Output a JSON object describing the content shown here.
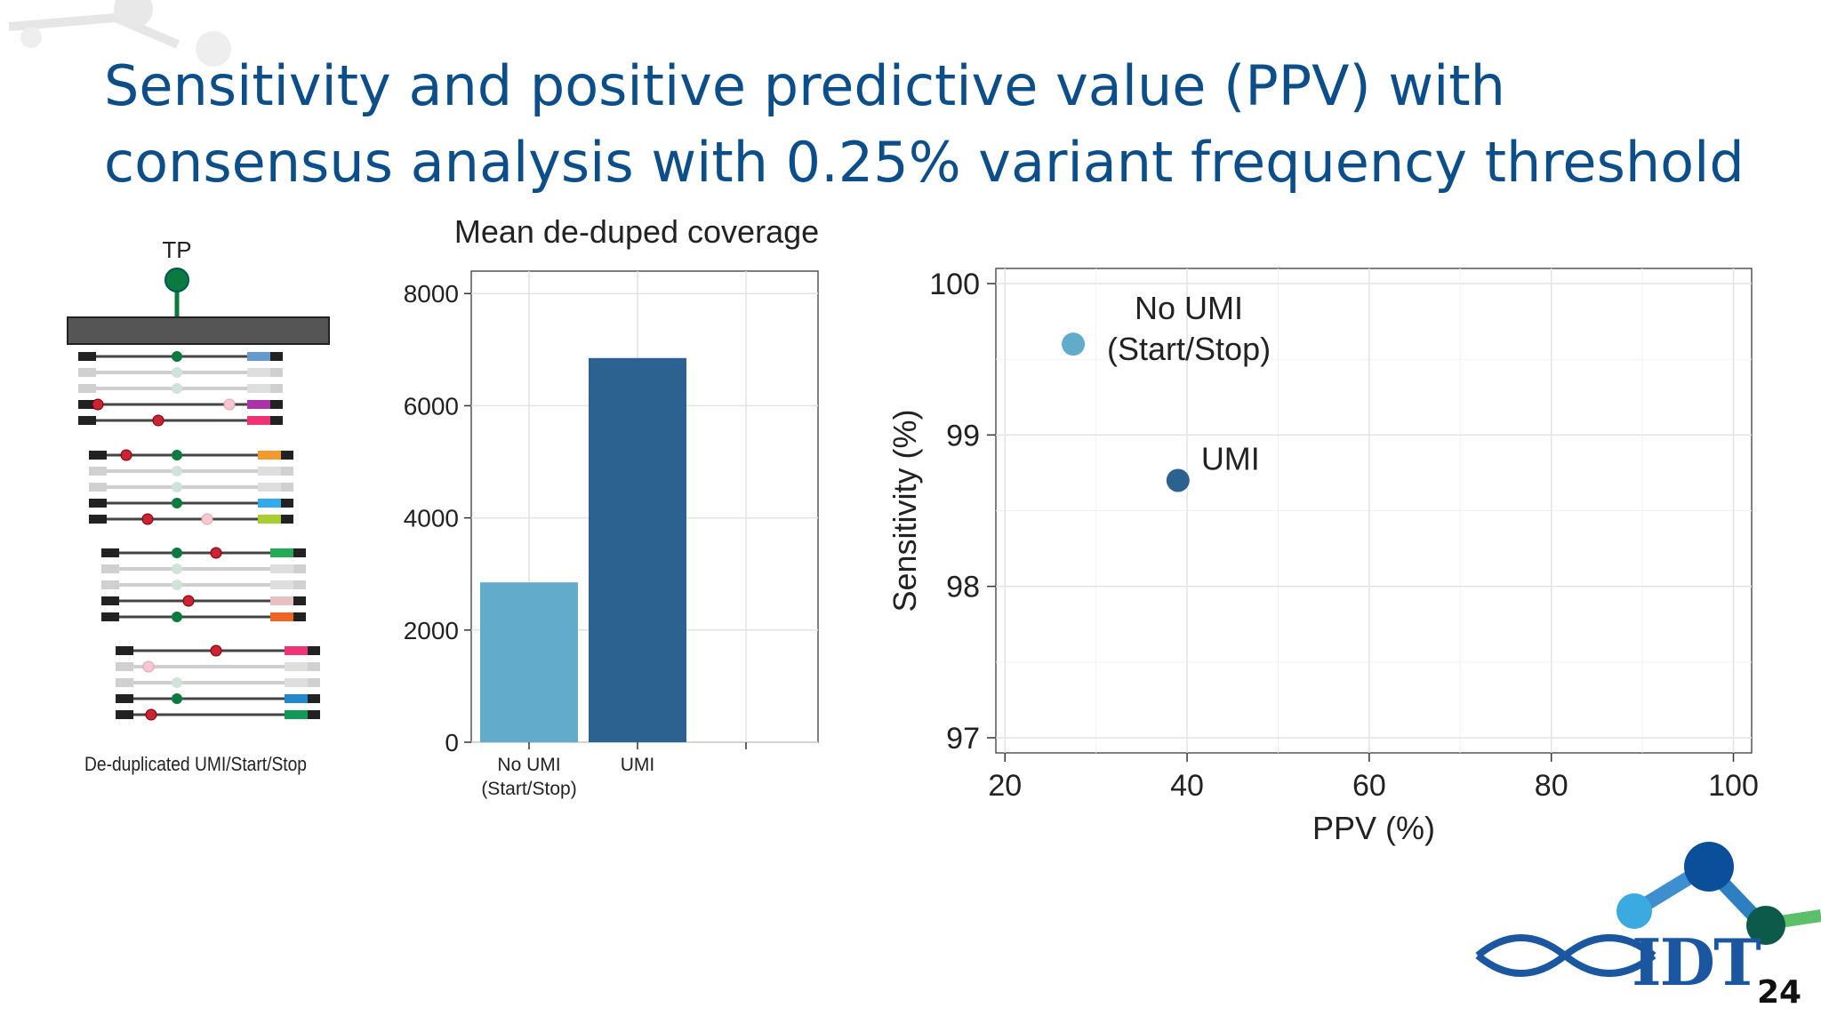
{
  "slide": {
    "title_line1": "Sensitivity and positive predictive value (PPV) with",
    "title_line2": "consensus analysis with 0.25% variant frequency threshold",
    "page_number": "24",
    "logo_text": "IDT"
  },
  "colors": {
    "title": "#0b4e8a",
    "no_umi": "#63abcb",
    "umi": "#2b6290",
    "variant_green": "#0b7a3e",
    "variant_red": "#cc2233",
    "gene_bar": "#555555"
  },
  "diagram": {
    "tp_label": "TP",
    "footer_label": "De-duplicated UMI/Start/Stop"
  },
  "chart_data": [
    {
      "type": "bar",
      "title": "Mean de-duped coverage",
      "categories": [
        "No UMI\n(Start/Stop)",
        "UMI"
      ],
      "values": [
        2850,
        6850
      ],
      "colors": [
        "#63abcb",
        "#2b6290"
      ],
      "ylim": [
        0,
        8400
      ],
      "yticks": [
        0,
        2000,
        4000,
        6000,
        8000
      ],
      "xlabel": "",
      "ylabel": "",
      "grid": true
    },
    {
      "type": "scatter",
      "xlabel": "PPV (%)",
      "ylabel": "Sensitivity (%)",
      "xlim": [
        19,
        102
      ],
      "ylim": [
        96.9,
        100.1
      ],
      "xticks": [
        20,
        40,
        60,
        80,
        100
      ],
      "yticks": [
        97,
        98,
        99,
        100
      ],
      "grid": true,
      "series": [
        {
          "label": "No UMI\n(Start/Stop)",
          "x": 27.5,
          "y": 99.6,
          "color": "#63abcb"
        },
        {
          "label": "UMI",
          "x": 39,
          "y": 98.7,
          "color": "#2b6290"
        }
      ]
    }
  ]
}
